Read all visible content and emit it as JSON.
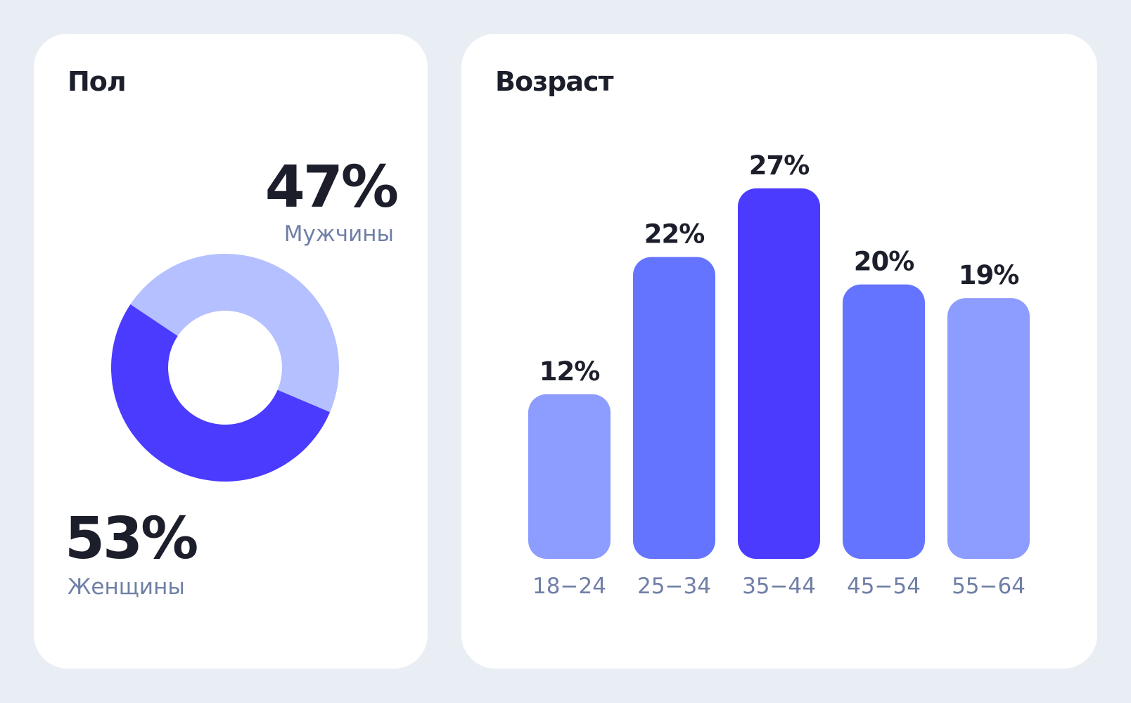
{
  "gender": {
    "title": "Пол",
    "men": {
      "pct": "47%",
      "label": "Мужчины"
    },
    "women": {
      "pct": "53%",
      "label": "Женщины"
    }
  },
  "age": {
    "title": "Возраст"
  },
  "colors": {
    "background": "#E9EDF4",
    "card": "#FFFFFF",
    "text_dark": "#1C1F2B",
    "text_muted": "#6F7FA6",
    "men_slice": "#B4C0FF",
    "women_slice": "#4B3BFF",
    "bar_light": "#8C9CFF",
    "bar_mid": "#6574FF",
    "bar_dark": "#4B3BFF"
  },
  "chart_data": [
    {
      "type": "pie",
      "title": "Пол",
      "categories": [
        "Мужчины",
        "Женщины"
      ],
      "values": [
        47,
        53
      ],
      "unit": "%"
    },
    {
      "type": "bar",
      "title": "Возраст",
      "categories": [
        "18−24",
        "25−34",
        "35−44",
        "45−54",
        "55−64"
      ],
      "values": [
        12,
        22,
        27,
        20,
        19
      ],
      "value_labels": [
        "12%",
        "22%",
        "27%",
        "20%",
        "19%"
      ],
      "xlabel": "",
      "ylabel": "",
      "ylim": [
        0,
        27
      ]
    }
  ]
}
